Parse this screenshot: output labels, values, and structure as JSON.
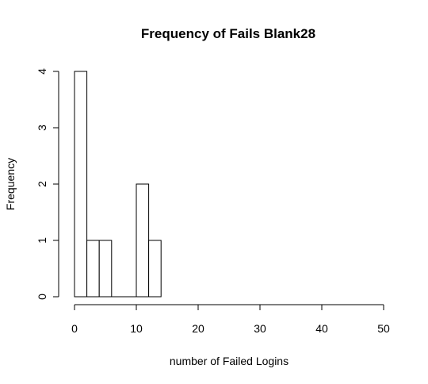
{
  "chart_data": {
    "type": "bar",
    "title": "Frequency of Fails Blank28",
    "xlabel": "number of Failed Logins",
    "ylabel": "Frequency",
    "xlim": [
      0,
      50
    ],
    "ylim": [
      0,
      4
    ],
    "x_ticks": [
      "0",
      "10",
      "20",
      "30",
      "40",
      "50"
    ],
    "y_ticks": [
      "0",
      "1",
      "2",
      "3",
      "4"
    ],
    "bin_width": 2,
    "bins": [
      {
        "start": 0,
        "end": 2,
        "count": 4
      },
      {
        "start": 2,
        "end": 4,
        "count": 1
      },
      {
        "start": 4,
        "end": 6,
        "count": 1
      },
      {
        "start": 6,
        "end": 8,
        "count": 0
      },
      {
        "start": 8,
        "end": 10,
        "count": 0
      },
      {
        "start": 10,
        "end": 12,
        "count": 2
      },
      {
        "start": 12,
        "end": 14,
        "count": 1
      }
    ],
    "grid": false,
    "colors": {
      "bar_fill": "#ffffff",
      "bar_stroke": "#000000"
    }
  }
}
